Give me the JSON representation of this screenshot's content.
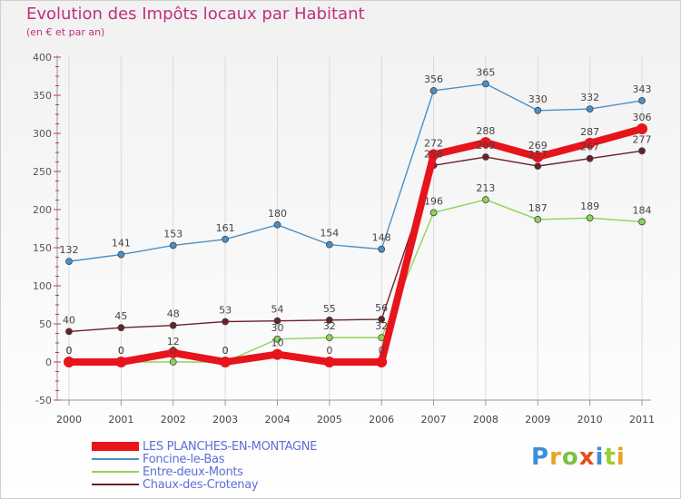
{
  "title": "Evolution des Impôts locaux par Habitant",
  "subtitle": "(en € et par an)",
  "brand": "Proxiti",
  "chart_data": {
    "type": "line",
    "x": [
      2000,
      2001,
      2002,
      2003,
      2004,
      2005,
      2006,
      2007,
      2008,
      2009,
      2010,
      2011
    ],
    "ylim": [
      -50,
      400
    ],
    "yticks": [
      -50,
      0,
      50,
      100,
      150,
      200,
      250,
      300,
      350,
      400
    ],
    "grid": "vertical",
    "legend_position": "bottom-left",
    "series": [
      {
        "name": "Foncine-le-Bas",
        "color": "#4a90c8",
        "values": [
          132,
          141,
          153,
          161,
          180,
          154,
          148,
          356,
          365,
          330,
          332,
          343
        ],
        "labels": [
          "132",
          "141",
          "153",
          "161",
          "180",
          "154",
          "148",
          "356",
          "365",
          "330",
          "332",
          "343"
        ]
      },
      {
        "name": "Entre-deux-Monts",
        "color": "#8fd45a",
        "values": [
          0,
          0,
          0,
          0,
          30,
          32,
          32,
          196,
          213,
          187,
          189,
          184
        ],
        "labels": [
          "0",
          "0",
          "0",
          "0",
          "30",
          "32",
          "32",
          "196",
          "213",
          "187",
          "189",
          "184"
        ]
      },
      {
        "name": "Chaux-des-Crotenay",
        "color": "#6b1f28",
        "values": [
          40,
          45,
          48,
          53,
          54,
          55,
          56,
          258,
          269,
          257,
          267,
          277
        ],
        "labels": [
          "40",
          "45",
          "48",
          "53",
          "54",
          "55",
          "56",
          "258",
          "269",
          "257",
          "267",
          "277"
        ]
      },
      {
        "name": "LES PLANCHES-EN-MONTAGNE",
        "color": "#e8141c",
        "values": [
          0,
          0,
          12,
          0,
          10,
          0,
          0,
          272,
          288,
          269,
          287,
          306
        ],
        "labels": [
          "0",
          "0",
          "12",
          "0",
          "10",
          "0",
          "0",
          "272",
          "288",
          "269",
          "287",
          "306"
        ]
      }
    ]
  }
}
